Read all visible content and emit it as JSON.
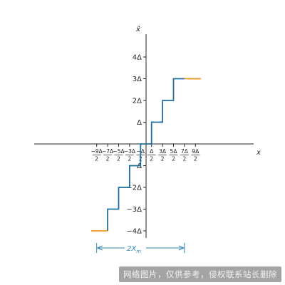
{
  "chart_data": {
    "type": "line",
    "x_axis_label": "x",
    "y_axis_label": "x̂",
    "unit": "Δ",
    "xlim": [
      -10,
      10
    ],
    "ylim": [
      -4.5,
      4.5
    ],
    "x_ticks": [
      {
        "value": -9,
        "num": "−9Δ",
        "den": "2"
      },
      {
        "value": -7,
        "num": "−7Δ",
        "den": "2"
      },
      {
        "value": -5,
        "num": "−5Δ",
        "den": "2"
      },
      {
        "value": -3,
        "num": "−3Δ",
        "den": "2"
      },
      {
        "value": -1,
        "num": "−Δ",
        "den": "2"
      },
      {
        "value": 1,
        "num": "Δ",
        "den": "2"
      },
      {
        "value": 3,
        "num": "3Δ",
        "den": "2"
      },
      {
        "value": 5,
        "num": "5Δ",
        "den": "2"
      },
      {
        "value": 7,
        "num": "7Δ",
        "den": "2"
      },
      {
        "value": 9,
        "num": "9Δ",
        "den": "2"
      }
    ],
    "y_ticks": [
      {
        "value": 4,
        "label": "4Δ"
      },
      {
        "value": 3,
        "label": "3Δ"
      },
      {
        "value": 2,
        "label": "2Δ"
      },
      {
        "value": 1,
        "label": "Δ"
      },
      {
        "value": -1,
        "label": "−Δ"
      },
      {
        "value": -2,
        "label": "−2Δ"
      },
      {
        "value": -3,
        "label": "−3Δ"
      },
      {
        "value": -4,
        "label": "−4Δ"
      }
    ],
    "series": [
      {
        "role": "quantizer-staircase",
        "color": "#1f6f9f",
        "points": [
          [
            -7,
            -4
          ],
          [
            -7,
            -3
          ],
          [
            -5,
            -3
          ],
          [
            -5,
            -2
          ],
          [
            -3,
            -2
          ],
          [
            -3,
            -1
          ],
          [
            -1,
            -1
          ],
          [
            -1,
            0
          ],
          [
            1,
            0
          ],
          [
            1,
            1
          ],
          [
            3,
            1
          ],
          [
            3,
            2
          ],
          [
            5,
            2
          ],
          [
            5,
            3
          ],
          [
            7,
            3
          ]
        ]
      },
      {
        "role": "saturation-left",
        "color": "#f0921c",
        "points": [
          [
            -10,
            -4
          ],
          [
            -7,
            -4
          ]
        ]
      },
      {
        "role": "saturation-right",
        "color": "#f0921c",
        "points": [
          [
            7,
            3
          ],
          [
            10,
            3
          ]
        ]
      }
    ],
    "range_annotation": {
      "label": "2Xm",
      "from": -9,
      "to": 7,
      "color": "#2f86b2"
    }
  },
  "watermark": {
    "text": "网络图片，仅供参考，侵权联系站长删除"
  }
}
